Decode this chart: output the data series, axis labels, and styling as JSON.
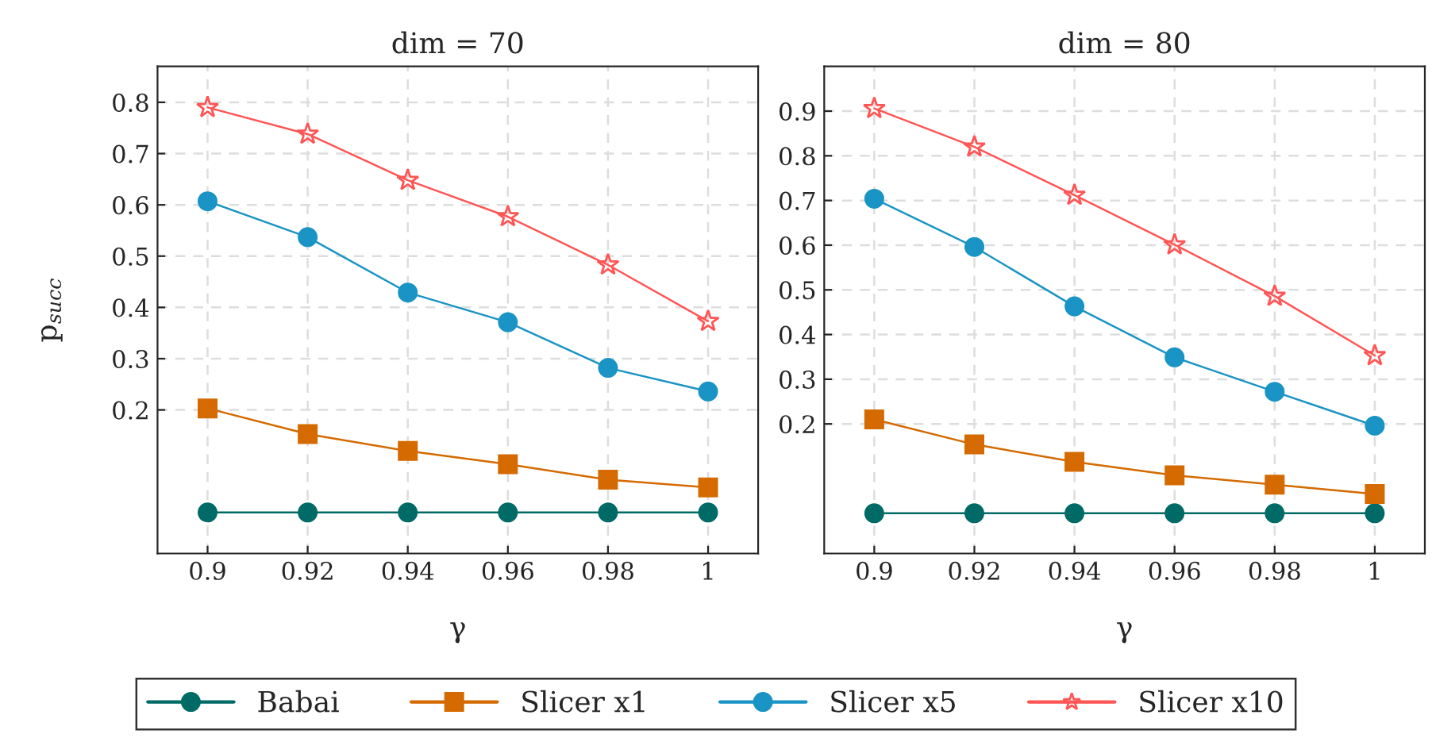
{
  "chart_data": [
    {
      "type": "line",
      "title": "dim = 70",
      "xlabel": "γ",
      "ylabel": "p$_{succ}$",
      "x": [
        0.9,
        0.92,
        0.94,
        0.96,
        0.98,
        1
      ],
      "xlim": [
        0.89,
        1.01
      ],
      "xticks": [
        0.9,
        0.92,
        0.94,
        0.96,
        0.98,
        1
      ],
      "ylim": [
        -0.08,
        0.87
      ],
      "yticks": [
        0.2,
        0.3,
        0.4,
        0.5,
        0.6,
        0.7,
        0.8
      ],
      "grid": true,
      "legend": "bottom",
      "series": [
        {
          "name": "Babai",
          "color": "#006b66",
          "marker": "circle",
          "values": [
            0,
            0,
            0,
            0,
            0,
            0
          ]
        },
        {
          "name": "Slicer x1",
          "color": "#d46a00",
          "marker": "square",
          "values": [
            0.203,
            0.153,
            0.12,
            0.094,
            0.064,
            0.049
          ]
        },
        {
          "name": "Slicer x5",
          "color": "#1a94c4",
          "marker": "circle",
          "values": [
            0.607,
            0.537,
            0.429,
            0.371,
            0.282,
            0.236
          ]
        },
        {
          "name": "Slicer x10",
          "color": "#ff5555",
          "marker": "star",
          "values": [
            0.79,
            0.738,
            0.648,
            0.577,
            0.483,
            0.373
          ]
        }
      ]
    },
    {
      "type": "line",
      "title": "dim = 80",
      "xlabel": "γ",
      "x": [
        0.9,
        0.92,
        0.94,
        0.96,
        0.98,
        1
      ],
      "xlim": [
        0.89,
        1.01
      ],
      "xticks": [
        0.9,
        0.92,
        0.94,
        0.96,
        0.98,
        1
      ],
      "ylim": [
        -0.09,
        1.0
      ],
      "yticks": [
        0.2,
        0.3,
        0.4,
        0.5,
        0.6,
        0.7,
        0.8,
        0.9
      ],
      "grid": true,
      "series": [
        {
          "color": "#006b66",
          "marker": "circle",
          "values": [
            0,
            0,
            0,
            0,
            0,
            0
          ]
        },
        {
          "color": "#d46a00",
          "marker": "square",
          "values": [
            0.21,
            0.154,
            0.115,
            0.085,
            0.064,
            0.043
          ]
        },
        {
          "color": "#1a94c4",
          "marker": "circle",
          "values": [
            0.704,
            0.596,
            0.463,
            0.349,
            0.272,
            0.196
          ]
        },
        {
          "color": "#ff5555",
          "marker": "star",
          "values": [
            0.906,
            0.82,
            0.712,
            0.601,
            0.486,
            0.353
          ]
        }
      ]
    }
  ]
}
